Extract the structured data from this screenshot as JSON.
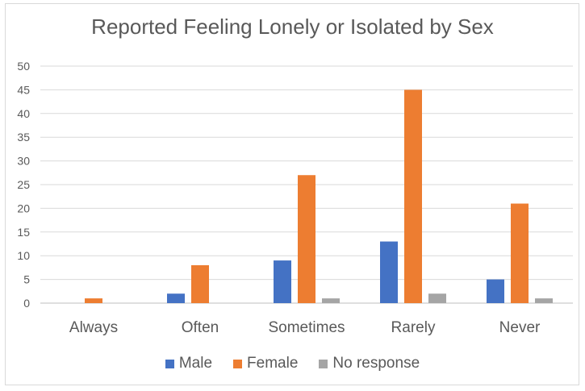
{
  "chart_data": {
    "type": "bar",
    "title": "Reported Feeling Lonely or Isolated by Sex",
    "xlabel": "",
    "ylabel": "",
    "ylim": [
      0,
      50
    ],
    "yticks": [
      "0",
      "5",
      "10",
      "15",
      "20",
      "25",
      "30",
      "35",
      "40",
      "45",
      "50"
    ],
    "categories": [
      "Always",
      "Often",
      "Sometimes",
      "Rarely",
      "Never"
    ],
    "series": [
      {
        "name": "Male",
        "color": "#4472C4",
        "values": [
          0,
          2,
          9,
          13,
          5
        ]
      },
      {
        "name": "Female",
        "color": "#ED7D31",
        "values": [
          1,
          8,
          27,
          45,
          21
        ]
      },
      {
        "name": "No response",
        "color": "#A5A5A5",
        "values": [
          0,
          0,
          1,
          2,
          1
        ]
      }
    ],
    "grid": true,
    "legend": "bottom"
  }
}
